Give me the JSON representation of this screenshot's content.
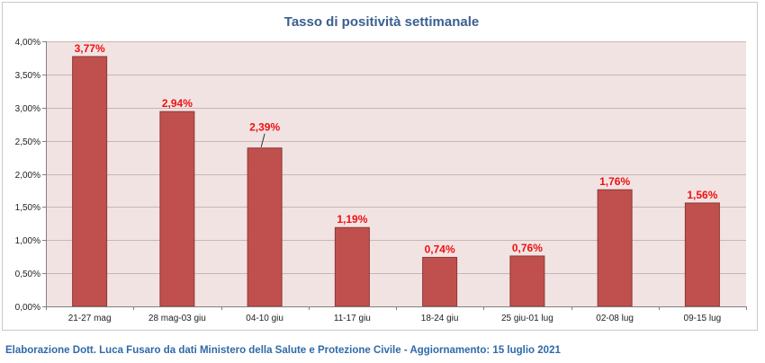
{
  "chart_data": {
    "type": "bar",
    "title": "Tasso di positività settimanale",
    "xlabel": "",
    "ylabel": "",
    "categories": [
      "21-27 mag",
      "28 mag-03 giu",
      "04-10 giu",
      "11-17 giu",
      "18-24 giu",
      "25 giu-01 lug",
      "02-08 lug",
      "09-15 lug"
    ],
    "values": [
      3.77,
      2.94,
      2.39,
      1.19,
      0.74,
      0.76,
      1.76,
      1.56
    ],
    "data_labels": [
      "3,77%",
      "2,94%",
      "2,39%",
      "1,19%",
      "0,74%",
      "0,76%",
      "1,76%",
      "1,56%"
    ],
    "ylim": [
      0,
      4
    ],
    "yticks": [
      0,
      0.5,
      1,
      1.5,
      2,
      2.5,
      3,
      3.5,
      4
    ],
    "ytick_labels": [
      "0,00%",
      "0,50%",
      "1,00%",
      "1,50%",
      "2,00%",
      "2,50%",
      "3,00%",
      "3,50%",
      "4,00%"
    ],
    "grid": true,
    "colors": {
      "bar": "#c0504d",
      "bar_border": "#8c3836",
      "plot_background": "#f2e3e3",
      "gridline": "#c8b5b5",
      "data_label": "#ee1111",
      "title": "#3b5f8f"
    }
  },
  "footer": {
    "text": "Elaborazione Dott. Luca Fusaro da dati Ministero della Salute e Protezione Civile - Aggiornamento: 15 luglio 2021"
  }
}
